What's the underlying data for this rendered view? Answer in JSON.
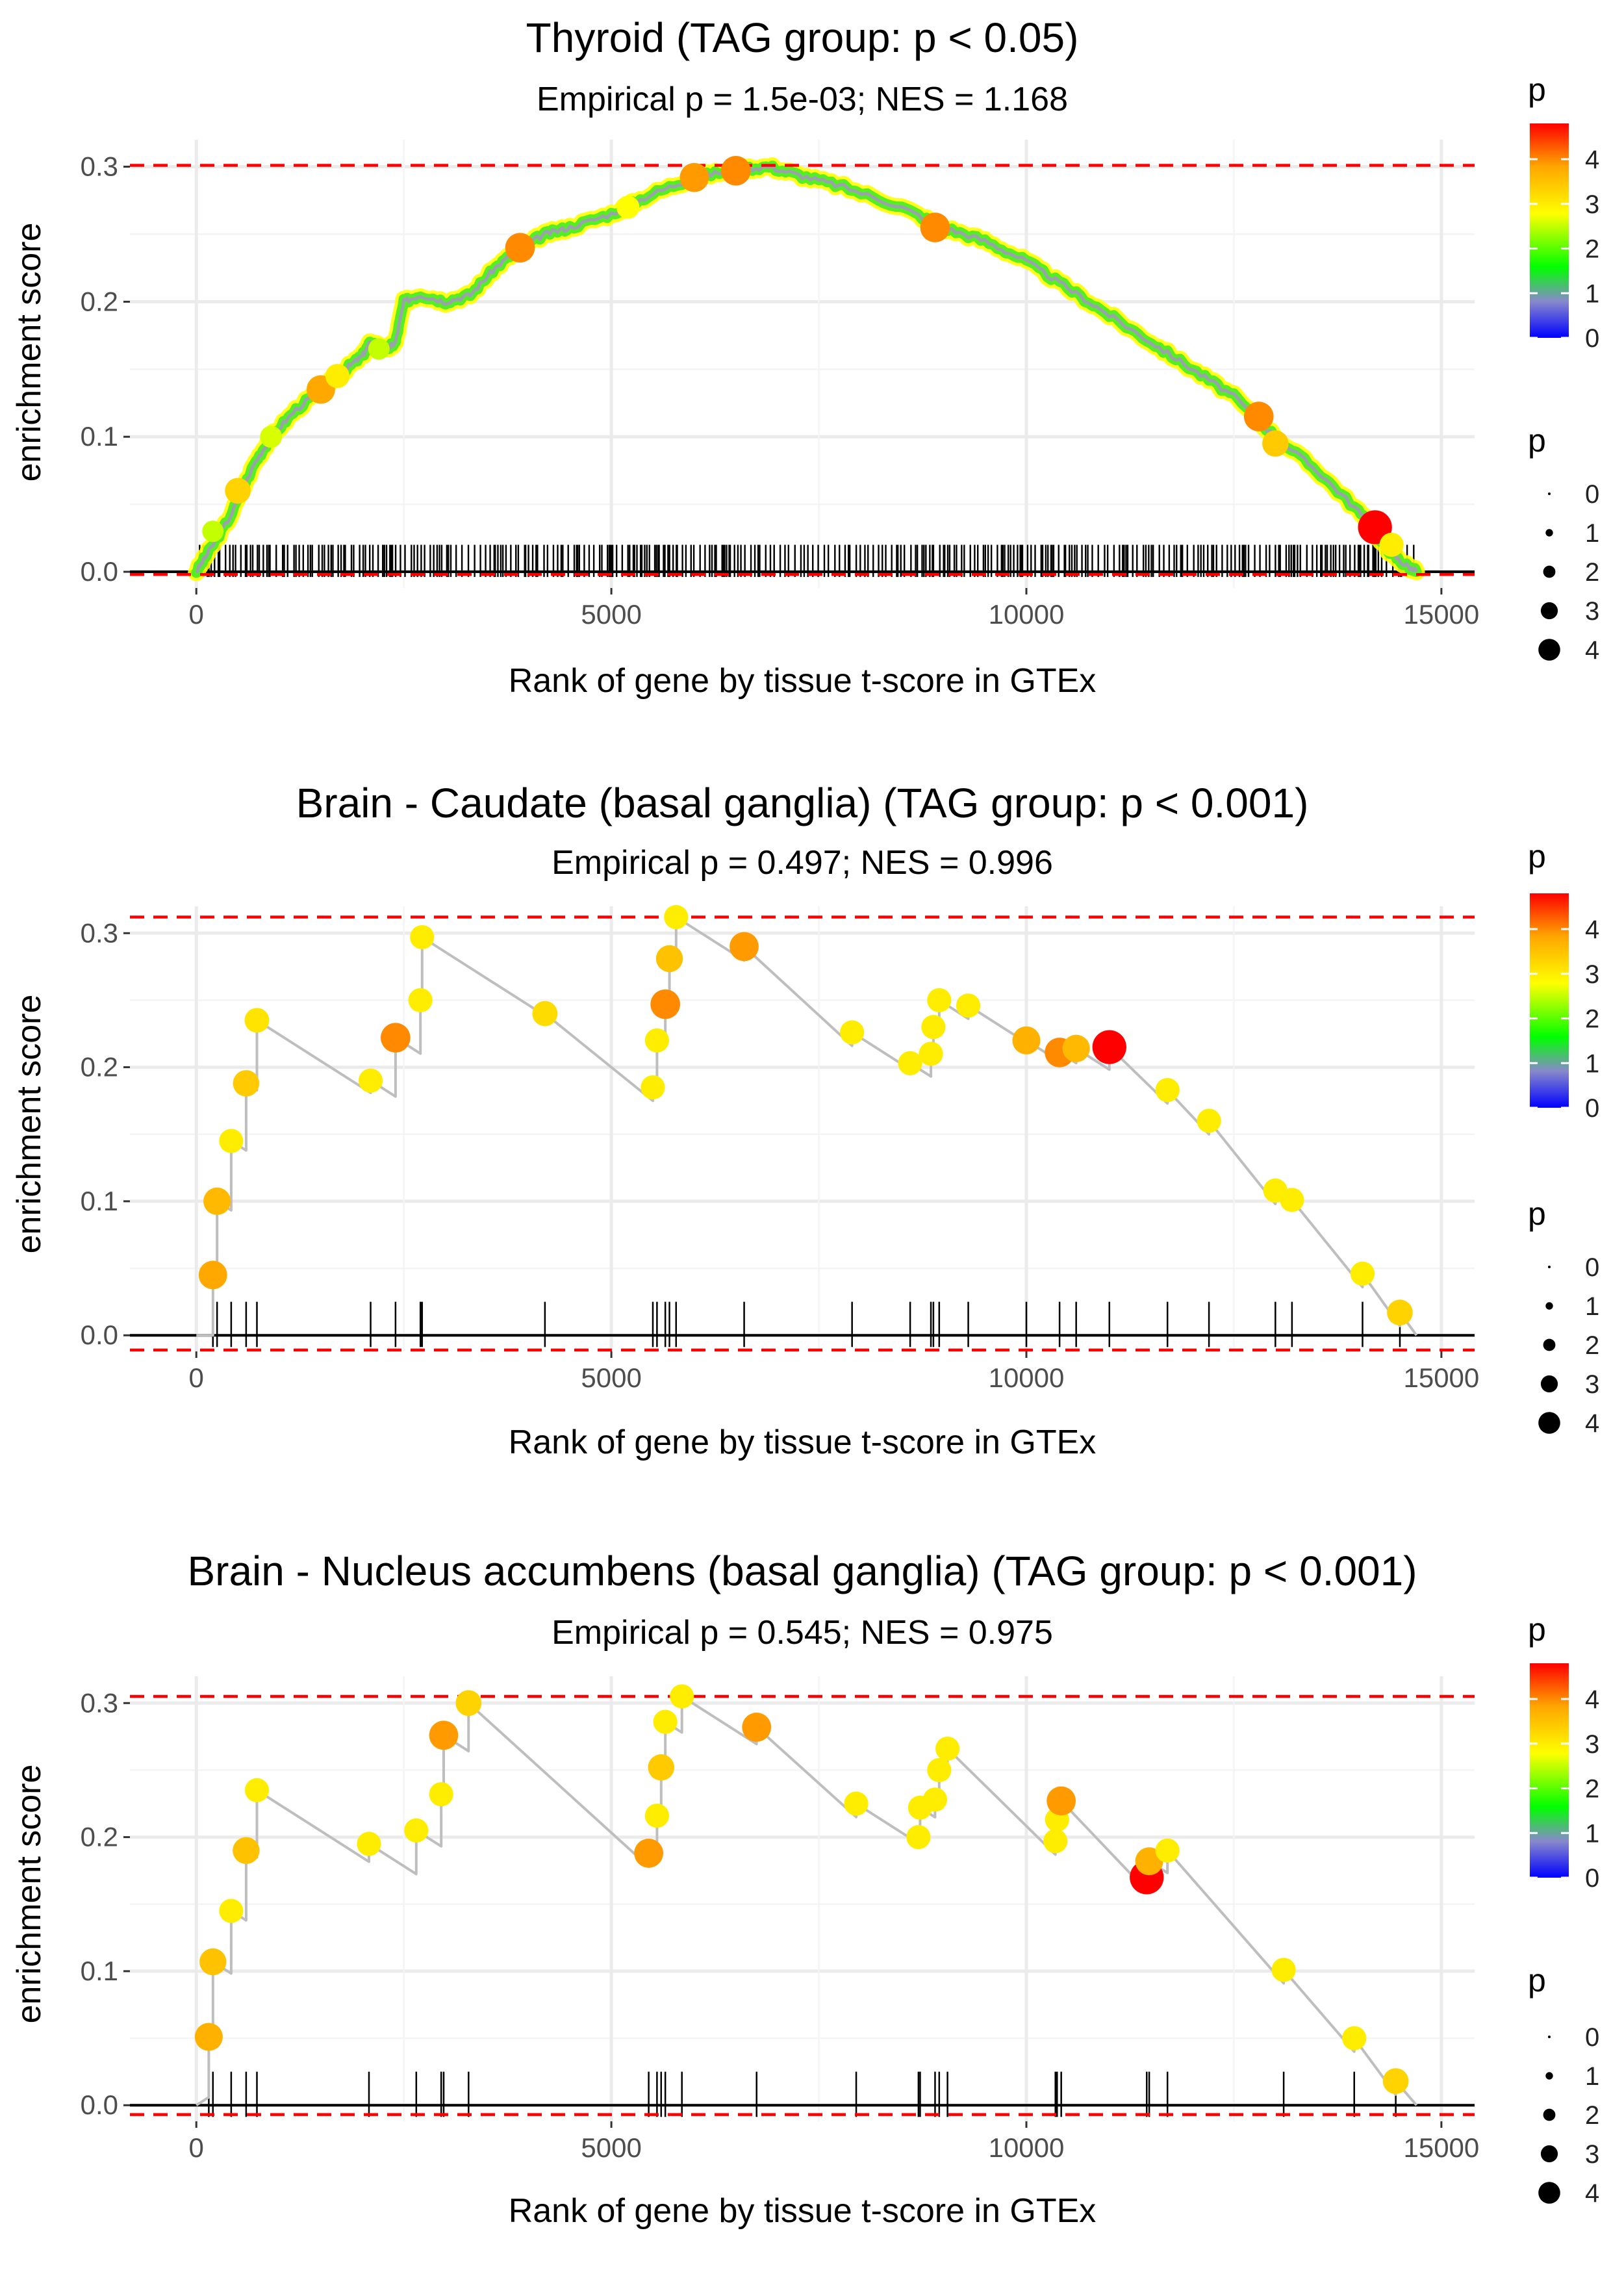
{
  "chart_data": [
    {
      "type": "line",
      "title": "Thyroid (TAG group: p < 0.05)",
      "subtitle": "Empirical p = 1.5e-03; NES = 1.168",
      "xlabel": "Rank of gene by tissue t-score in GTEx",
      "ylabel": "enrichment score",
      "xlim": [
        -800,
        15400
      ],
      "ylim": [
        -0.012,
        0.32
      ],
      "x_ticks": [
        0,
        5000,
        10000,
        15000
      ],
      "x_tick_labels": [
        "0",
        "5000",
        "10000",
        "15000"
      ],
      "y_ticks": [
        0.0,
        0.1,
        0.2,
        0.3
      ],
      "y_tick_labels": [
        "0.0",
        "0.1",
        "0.2",
        "0.3"
      ],
      "max_es": 0.301,
      "min_es": -0.002,
      "dense_curve": [
        [
          0,
          0
        ],
        [
          150,
          0.015
        ],
        [
          400,
          0.04
        ],
        [
          700,
          0.08
        ],
        [
          900,
          0.1
        ],
        [
          1200,
          0.12
        ],
        [
          1600,
          0.14
        ],
        [
          1800,
          0.15
        ],
        [
          2000,
          0.16
        ],
        [
          2100,
          0.17
        ],
        [
          2300,
          0.165
        ],
        [
          2400,
          0.17
        ],
        [
          2500,
          0.2
        ],
        [
          2700,
          0.205
        ],
        [
          3000,
          0.2
        ],
        [
          3300,
          0.205
        ],
        [
          3600,
          0.225
        ],
        [
          3900,
          0.24
        ],
        [
          4200,
          0.25
        ],
        [
          4500,
          0.255
        ],
        [
          5000,
          0.265
        ],
        [
          5500,
          0.28
        ],
        [
          6000,
          0.292
        ],
        [
          6500,
          0.298
        ],
        [
          6900,
          0.3
        ],
        [
          7300,
          0.293
        ],
        [
          7800,
          0.285
        ],
        [
          8500,
          0.27
        ],
        [
          9000,
          0.255
        ],
        [
          9500,
          0.245
        ],
        [
          10000,
          0.23
        ],
        [
          10500,
          0.21
        ],
        [
          11000,
          0.19
        ],
        [
          11500,
          0.17
        ],
        [
          12000,
          0.15
        ],
        [
          12500,
          0.13
        ],
        [
          13000,
          0.1
        ],
        [
          13500,
          0.075
        ],
        [
          14000,
          0.045
        ],
        [
          14300,
          0.02
        ],
        [
          14500,
          0.008
        ],
        [
          14700,
          0
        ]
      ],
      "points": [
        {
          "x": 200,
          "y": 0.03,
          "p": 2.5
        },
        {
          "x": 500,
          "y": 0.06,
          "p": 3.3
        },
        {
          "x": 900,
          "y": 0.1,
          "p": 2.6
        },
        {
          "x": 1500,
          "y": 0.135,
          "p": 3.8
        },
        {
          "x": 1700,
          "y": 0.145,
          "p": 3.0
        },
        {
          "x": 2200,
          "y": 0.165,
          "p": 2.5
        },
        {
          "x": 3900,
          "y": 0.24,
          "p": 4.0
        },
        {
          "x": 5200,
          "y": 0.27,
          "p": 2.8
        },
        {
          "x": 6000,
          "y": 0.292,
          "p": 3.9
        },
        {
          "x": 6500,
          "y": 0.297,
          "p": 4.0
        },
        {
          "x": 8900,
          "y": 0.255,
          "p": 4.0
        },
        {
          "x": 12800,
          "y": 0.115,
          "p": 4.0
        },
        {
          "x": 13000,
          "y": 0.095,
          "p": 3.4
        },
        {
          "x": 14200,
          "y": 0.033,
          "p": 4.8
        },
        {
          "x": 14400,
          "y": 0.02,
          "p": 3.0
        }
      ],
      "rug_ticks": []
    },
    {
      "type": "line",
      "title": "Brain - Caudate (basal ganglia) (TAG group: p < 0.001)",
      "subtitle": "Empirical p = 0.497; NES = 0.996",
      "xlabel": "Rank of gene by tissue t-score in GTEx",
      "ylabel": "enrichment score",
      "xlim": [
        -800,
        15400
      ],
      "ylim": [
        -0.012,
        0.32
      ],
      "x_ticks": [
        0,
        5000,
        10000,
        15000
      ],
      "x_tick_labels": [
        "0",
        "5000",
        "10000",
        "15000"
      ],
      "y_ticks": [
        0.0,
        0.1,
        0.2,
        0.3
      ],
      "y_tick_labels": [
        "0.0",
        "0.1",
        "0.2",
        "0.3"
      ],
      "max_es": 0.312,
      "min_es": -0.011,
      "points": [
        {
          "x": 200,
          "y": 0.045,
          "p": 3.8
        },
        {
          "x": 250,
          "y": 0.1,
          "p": 3.6
        },
        {
          "x": 420,
          "y": 0.145,
          "p": 3.0
        },
        {
          "x": 600,
          "y": 0.188,
          "p": 3.4
        },
        {
          "x": 730,
          "y": 0.235,
          "p": 3.1
        },
        {
          "x": 2100,
          "y": 0.19,
          "p": 3.0
        },
        {
          "x": 2400,
          "y": 0.222,
          "p": 4.0
        },
        {
          "x": 2700,
          "y": 0.25,
          "p": 3.0
        },
        {
          "x": 2720,
          "y": 0.297,
          "p": 3.0
        },
        {
          "x": 4200,
          "y": 0.24,
          "p": 3.2
        },
        {
          "x": 5500,
          "y": 0.185,
          "p": 3.0
        },
        {
          "x": 5550,
          "y": 0.22,
          "p": 3.0
        },
        {
          "x": 5650,
          "y": 0.247,
          "p": 4.0
        },
        {
          "x": 5700,
          "y": 0.281,
          "p": 3.5
        },
        {
          "x": 5780,
          "y": 0.312,
          "p": 3.0
        },
        {
          "x": 6600,
          "y": 0.29,
          "p": 3.9
        },
        {
          "x": 7900,
          "y": 0.226,
          "p": 3.0
        },
        {
          "x": 8600,
          "y": 0.203,
          "p": 3.0
        },
        {
          "x": 8850,
          "y": 0.21,
          "p": 3.0
        },
        {
          "x": 8880,
          "y": 0.23,
          "p": 3.0
        },
        {
          "x": 8950,
          "y": 0.25,
          "p": 3.0
        },
        {
          "x": 9300,
          "y": 0.246,
          "p": 3.0
        },
        {
          "x": 10000,
          "y": 0.22,
          "p": 3.7
        },
        {
          "x": 10400,
          "y": 0.211,
          "p": 4.0
        },
        {
          "x": 10600,
          "y": 0.214,
          "p": 3.6
        },
        {
          "x": 11000,
          "y": 0.215,
          "p": 4.8
        },
        {
          "x": 11700,
          "y": 0.183,
          "p": 3.0
        },
        {
          "x": 12200,
          "y": 0.16,
          "p": 3.0
        },
        {
          "x": 13000,
          "y": 0.108,
          "p": 3.0
        },
        {
          "x": 13200,
          "y": 0.101,
          "p": 3.0
        },
        {
          "x": 14050,
          "y": 0.046,
          "p": 3.0
        },
        {
          "x": 14500,
          "y": 0.017,
          "p": 3.3
        }
      ],
      "rug_ticks": [
        200,
        250,
        420,
        600,
        730,
        2100,
        2400,
        2700,
        2720,
        4200,
        5500,
        5550,
        5650,
        5700,
        5780,
        6600,
        7900,
        8600,
        8850,
        8880,
        8950,
        9300,
        10000,
        10400,
        10600,
        11000,
        11700,
        12200,
        13000,
        13200,
        14050,
        14500
      ]
    },
    {
      "type": "line",
      "title": "Brain - Nucleus accumbens (basal ganglia) (TAG group: p < 0.001)",
      "subtitle": "Empirical p = 0.545; NES = 0.975",
      "xlabel": "Rank of gene by tissue t-score in GTEx",
      "ylabel": "enrichment score",
      "xlim": [
        -800,
        15400
      ],
      "ylim": [
        -0.012,
        0.32
      ],
      "x_ticks": [
        0,
        5000,
        10000,
        15000
      ],
      "x_tick_labels": [
        "0",
        "5000",
        "10000",
        "15000"
      ],
      "y_ticks": [
        0.0,
        0.1,
        0.2,
        0.3
      ],
      "y_tick_labels": [
        "0.0",
        "0.1",
        "0.2",
        "0.3"
      ],
      "max_es": 0.305,
      "min_es": -0.007,
      "points": [
        {
          "x": 150,
          "y": 0.051,
          "p": 3.7
        },
        {
          "x": 200,
          "y": 0.107,
          "p": 3.5
        },
        {
          "x": 420,
          "y": 0.145,
          "p": 3.0
        },
        {
          "x": 600,
          "y": 0.19,
          "p": 3.5
        },
        {
          "x": 730,
          "y": 0.235,
          "p": 3.0
        },
        {
          "x": 2080,
          "y": 0.195,
          "p": 3.0
        },
        {
          "x": 2650,
          "y": 0.205,
          "p": 3.0
        },
        {
          "x": 2950,
          "y": 0.232,
          "p": 3.0
        },
        {
          "x": 2980,
          "y": 0.276,
          "p": 3.9
        },
        {
          "x": 3280,
          "y": 0.3,
          "p": 3.3
        },
        {
          "x": 5450,
          "y": 0.188,
          "p": 3.9
        },
        {
          "x": 5550,
          "y": 0.216,
          "p": 3.0
        },
        {
          "x": 5600,
          "y": 0.252,
          "p": 3.4
        },
        {
          "x": 5650,
          "y": 0.286,
          "p": 3.0
        },
        {
          "x": 5850,
          "y": 0.305,
          "p": 3.0
        },
        {
          "x": 6750,
          "y": 0.282,
          "p": 3.9
        },
        {
          "x": 7950,
          "y": 0.225,
          "p": 3.0
        },
        {
          "x": 8700,
          "y": 0.2,
          "p": 3.0
        },
        {
          "x": 8720,
          "y": 0.222,
          "p": 3.0
        },
        {
          "x": 8900,
          "y": 0.228,
          "p": 3.0
        },
        {
          "x": 8950,
          "y": 0.25,
          "p": 3.0
        },
        {
          "x": 9050,
          "y": 0.266,
          "p": 3.0
        },
        {
          "x": 10350,
          "y": 0.197,
          "p": 3.0
        },
        {
          "x": 10370,
          "y": 0.213,
          "p": 3.0
        },
        {
          "x": 10420,
          "y": 0.227,
          "p": 3.9
        },
        {
          "x": 11450,
          "y": 0.17,
          "p": 4.8
        },
        {
          "x": 11480,
          "y": 0.182,
          "p": 3.7
        },
        {
          "x": 11700,
          "y": 0.19,
          "p": 3.0
        },
        {
          "x": 13100,
          "y": 0.101,
          "p": 3.0
        },
        {
          "x": 13950,
          "y": 0.05,
          "p": 3.0
        },
        {
          "x": 14450,
          "y": 0.018,
          "p": 3.3
        }
      ],
      "rug_ticks": [
        150,
        200,
        420,
        600,
        730,
        2080,
        2650,
        2950,
        2980,
        3280,
        5450,
        5550,
        5600,
        5650,
        5850,
        6750,
        7950,
        8700,
        8720,
        8900,
        8950,
        9050,
        10350,
        10370,
        10420,
        11450,
        11480,
        11700,
        13100,
        13950,
        14450
      ]
    }
  ],
  "legend": {
    "color_title": "p",
    "color_labels": [
      "4",
      "3",
      "2",
      "1",
      "0"
    ],
    "size_title": "p",
    "size_labels": [
      "0",
      "1",
      "2",
      "3",
      "4"
    ]
  },
  "colors": {
    "gradient": [
      "#0000ff",
      "#8888cc",
      "#00ff00",
      "#ffff00",
      "#ffa500",
      "#ff0000"
    ],
    "reference_line": "#ff0000",
    "es_line": "#bebebe",
    "grid": "#ebebeb"
  }
}
